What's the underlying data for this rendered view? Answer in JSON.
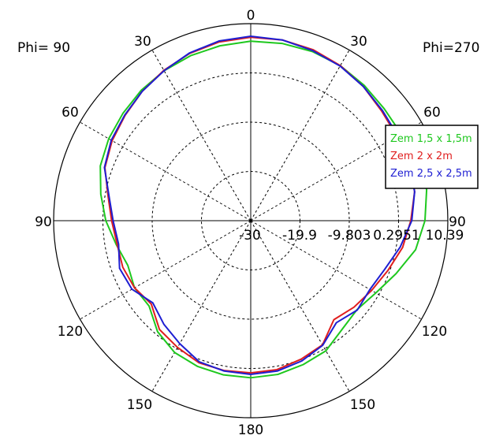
{
  "chart_data": {
    "type": "polar-line",
    "phi_left_label": "Phi= 90",
    "phi_right_label": "Phi=270",
    "angle_ticks_left": [
      "0",
      "30",
      "60",
      "90",
      "120",
      "150",
      "180"
    ],
    "angle_ticks_right": [
      "30",
      "60",
      "90",
      "120",
      "150"
    ],
    "radial_ticks": [
      "-30",
      "-19.9",
      "-9.803",
      "0.2951",
      "10.39"
    ],
    "rlim": [
      -30,
      10.39
    ],
    "grid": true,
    "legend_position": "right",
    "series": [
      {
        "name": "Zem 1,5 x 1,5m",
        "color": "#1ec81e",
        "r": [
          [
            0,
            6.8
          ],
          [
            10,
            6.4
          ],
          [
            20,
            6.0
          ],
          [
            30,
            5.5
          ],
          [
            40,
            4.9
          ],
          [
            50,
            4.2
          ],
          [
            60,
            3.6
          ],
          [
            70,
            2.8
          ],
          [
            80,
            1.2
          ],
          [
            90,
            -0.3
          ],
          [
            100,
            -2.0
          ],
          [
            110,
            -3.2
          ],
          [
            120,
            -2.5
          ],
          [
            130,
            -2.8
          ],
          [
            140,
            -0.3
          ],
          [
            150,
            1.2
          ],
          [
            160,
            1.8
          ],
          [
            170,
            2.1
          ],
          [
            180,
            2.2
          ],
          [
            190,
            2.0
          ],
          [
            200,
            1.4
          ],
          [
            210,
            0.8
          ],
          [
            220,
            -0.9
          ],
          [
            230,
            -1.6
          ],
          [
            240,
            -0.4
          ],
          [
            250,
            1.7
          ],
          [
            260,
            4.3
          ],
          [
            270,
            5.7
          ],
          [
            280,
            6.6
          ],
          [
            290,
            6.4
          ],
          [
            300,
            5.6
          ],
          [
            310,
            5.7
          ],
          [
            320,
            6.2
          ],
          [
            330,
            6.7
          ],
          [
            340,
            6.9
          ],
          [
            350,
            6.9
          ],
          [
            360,
            6.8
          ]
        ]
      },
      {
        "name": "Zem 2 x 2m",
        "color": "#e01e1e",
        "r": [
          [
            0,
            7.6
          ],
          [
            10,
            7.2
          ],
          [
            20,
            6.5
          ],
          [
            30,
            5.6
          ],
          [
            40,
            4.6
          ],
          [
            50,
            3.6
          ],
          [
            60,
            2.8
          ],
          [
            70,
            1.8
          ],
          [
            80,
            -0.3
          ],
          [
            90,
            -1.5
          ],
          [
            100,
            -2.2
          ],
          [
            110,
            -2.1
          ],
          [
            120,
            -2.5
          ],
          [
            130,
            -3.4
          ],
          [
            140,
            -0.9
          ],
          [
            150,
            0.0
          ],
          [
            160,
            1.0
          ],
          [
            170,
            1.2
          ],
          [
            180,
            1.2
          ],
          [
            190,
            1.0
          ],
          [
            200,
            0.2
          ],
          [
            210,
            -0.6
          ],
          [
            220,
            -3.5
          ],
          [
            230,
            -2.4
          ],
          [
            240,
            -1.4
          ],
          [
            250,
            -0.1
          ],
          [
            260,
            1.6
          ],
          [
            270,
            2.8
          ],
          [
            280,
            4.1
          ],
          [
            290,
            4.8
          ],
          [
            300,
            4.6
          ],
          [
            310,
            5.0
          ],
          [
            320,
            5.9
          ],
          [
            330,
            6.7
          ],
          [
            340,
            7.3
          ],
          [
            350,
            7.6
          ],
          [
            360,
            7.6
          ]
        ]
      },
      {
        "name": "Zem 2,5 x 2,5m",
        "color": "#1e1ed2",
        "r": [
          [
            0,
            7.8
          ],
          [
            10,
            7.4
          ],
          [
            20,
            6.6
          ],
          [
            30,
            5.5
          ],
          [
            40,
            4.6
          ],
          [
            50,
            3.7
          ],
          [
            60,
            3.0
          ],
          [
            70,
            1.9
          ],
          [
            80,
            -0.5
          ],
          [
            90,
            -1.8
          ],
          [
            100,
            -2.5
          ],
          [
            110,
            -1.4
          ],
          [
            120,
            -1.9
          ],
          [
            130,
            -3.8
          ],
          [
            140,
            -2.3
          ],
          [
            150,
            -0.9
          ],
          [
            160,
            0.8
          ],
          [
            170,
            1.3
          ],
          [
            180,
            1.5
          ],
          [
            190,
            1.3
          ],
          [
            200,
            0.6
          ],
          [
            210,
            -0.5
          ],
          [
            220,
            -2.7
          ],
          [
            230,
            -1.5
          ],
          [
            240,
            -1.8
          ],
          [
            250,
            -0.8
          ],
          [
            260,
            1.1
          ],
          [
            270,
            3.0
          ],
          [
            280,
            4.1
          ],
          [
            290,
            4.6
          ],
          [
            300,
            4.8
          ],
          [
            310,
            5.2
          ],
          [
            320,
            5.9
          ],
          [
            330,
            6.6
          ],
          [
            340,
            7.1
          ],
          [
            350,
            7.6
          ],
          [
            360,
            7.8
          ]
        ]
      }
    ]
  }
}
